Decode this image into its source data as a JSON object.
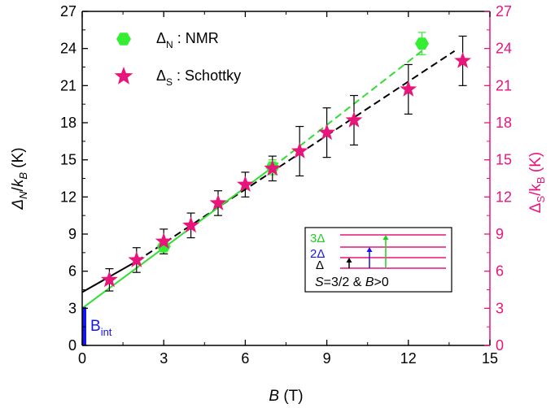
{
  "chart_data": {
    "type": "scatter",
    "x_axis": {
      "label_var": "B",
      "label_unit": " (T)",
      "min": 0,
      "max": 15,
      "ticks": [
        0,
        3,
        6,
        9,
        12,
        15
      ]
    },
    "y_left": {
      "label": "Δ_N/k_B (K)",
      "min": 0,
      "max": 27,
      "ticks": [
        0,
        3,
        6,
        9,
        12,
        15,
        18,
        21,
        24,
        27
      ]
    },
    "y_right": {
      "label": "Δ_S/k_B (K)",
      "min": 0,
      "max": 27,
      "ticks": [
        0,
        3,
        6,
        9,
        12,
        15,
        18,
        21,
        24,
        27
      ],
      "color": "#e8157a"
    },
    "grid": false,
    "legend_position": "top-left",
    "series": [
      {
        "name": "NMR",
        "legend_symbol": "Δ",
        "legend_subscript": "N",
        "legend_separator": ":",
        "marker": "hexagon",
        "color": "#33ee33",
        "points": [
          {
            "x": 3,
            "y": 8.0,
            "err": 0.6
          },
          {
            "x": 7,
            "y": 14.4,
            "err": 0.6
          },
          {
            "x": 12.5,
            "y": 24.4,
            "err": 0.9
          }
        ]
      },
      {
        "name": "Schottky",
        "legend_symbol": "Δ",
        "legend_subscript": "S",
        "legend_separator": ":",
        "marker": "star",
        "color": "#e8157a",
        "points": [
          {
            "x": 1,
            "y": 5.3,
            "err": 0.9
          },
          {
            "x": 2,
            "y": 6.9,
            "err": 1.0
          },
          {
            "x": 3,
            "y": 8.4,
            "err": 1.0
          },
          {
            "x": 4,
            "y": 9.7,
            "err": 1.0
          },
          {
            "x": 5,
            "y": 11.5,
            "err": 1.0
          },
          {
            "x": 6,
            "y": 13.0,
            "err": 1.0
          },
          {
            "x": 7,
            "y": 14.3,
            "err": 1.0
          },
          {
            "x": 8,
            "y": 15.7,
            "err": 2.0
          },
          {
            "x": 9,
            "y": 17.2,
            "err": 2.0
          },
          {
            "x": 10,
            "y": 18.2,
            "err": 2.0
          },
          {
            "x": 12,
            "y": 20.7,
            "err": 2.0
          },
          {
            "x": 14,
            "y": 23.0,
            "err": 2.0
          }
        ]
      }
    ],
    "fit_lines": [
      {
        "color": "#000000",
        "dash": false,
        "x1": 0,
        "y1": 4.3,
        "x2": 2,
        "y2": 6.8
      },
      {
        "color": "#000000",
        "dash": true,
        "x1": 2,
        "y1": 6.8,
        "x2": 13.7,
        "y2": 23.8
      },
      {
        "color": "#33dd33",
        "dash": false,
        "x1": 0,
        "y1": 3.0,
        "x2": 7,
        "y2": 14.4
      },
      {
        "color": "#33dd33",
        "dash": true,
        "x1": 7,
        "y1": 14.4,
        "x2": 12.5,
        "y2": 23.8
      }
    ],
    "b_int": {
      "label": "B",
      "subscript": "int",
      "value": 3.1,
      "color": "#1515ee"
    },
    "inset": {
      "levels": [
        {
          "label": "3Δ",
          "color": "#22cc22"
        },
        {
          "label": "2Δ",
          "color": "#1515ee"
        },
        {
          "label": "Δ",
          "color": "#000000"
        }
      ],
      "line_color": "#e8157a",
      "caption_var_s": "S",
      "caption_mid": "=3/2 & ",
      "caption_var_b": "B",
      "caption_end": ">0"
    }
  }
}
